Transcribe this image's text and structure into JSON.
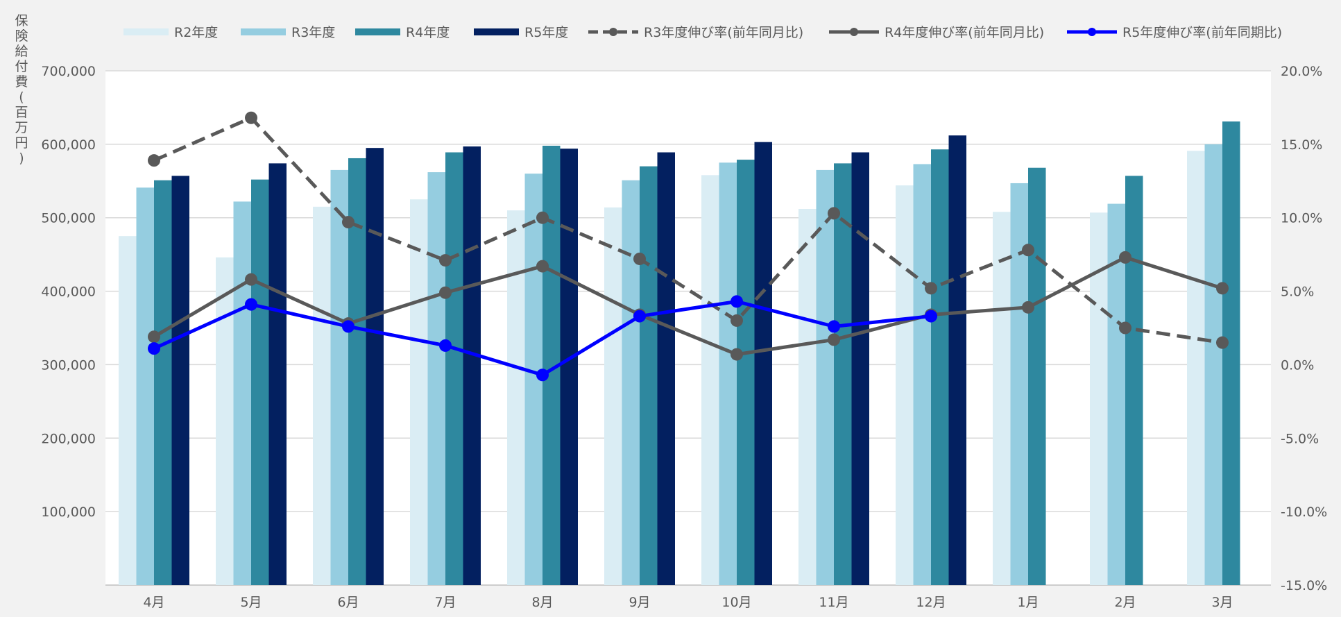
{
  "chart_data": {
    "type": "bar",
    "categories": [
      "4月",
      "5月",
      "6月",
      "7月",
      "8月",
      "9月",
      "10月",
      "11月",
      "12月",
      "1月",
      "2月",
      "3月"
    ],
    "series": [
      {
        "name": "R2年度",
        "kind": "bar",
        "color": "#daedf4",
        "values": [
          475000,
          446000,
          515000,
          525000,
          510000,
          514000,
          558000,
          512000,
          544000,
          508000,
          507000,
          591000
        ]
      },
      {
        "name": "R3年度",
        "kind": "bar",
        "color": "#95cde0",
        "values": [
          541000,
          522000,
          565000,
          562000,
          560000,
          551000,
          575000,
          565000,
          573000,
          547000,
          519000,
          600000
        ]
      },
      {
        "name": "R4年度",
        "kind": "bar",
        "color": "#2e889f",
        "values": [
          551000,
          552000,
          581000,
          589000,
          598000,
          570000,
          579000,
          574000,
          593000,
          568000,
          557000,
          631000
        ]
      },
      {
        "name": "R5年度",
        "kind": "bar",
        "color": "#032060",
        "values": [
          557000,
          574000,
          595000,
          597000,
          594000,
          589000,
          603000,
          589000,
          612000,
          null,
          null,
          null
        ]
      },
      {
        "name": "R3年度伸び率(前年同月比)",
        "kind": "line",
        "dash": true,
        "color": "#595959",
        "axis": "right",
        "values": [
          13.9,
          16.8,
          9.7,
          7.1,
          10.0,
          7.2,
          3.0,
          10.3,
          5.2,
          7.8,
          2.5,
          1.5
        ]
      },
      {
        "name": "R4年度伸び率(前年同月比)",
        "kind": "line",
        "dash": false,
        "color": "#595959",
        "axis": "right",
        "values": [
          1.9,
          5.8,
          2.8,
          4.9,
          6.7,
          3.4,
          0.7,
          1.7,
          3.4,
          3.9,
          7.3,
          5.2
        ]
      },
      {
        "name": "R5年度伸び率(前年同期比)",
        "kind": "line",
        "dash": false,
        "color": "#0000ff",
        "axis": "right",
        "values": [
          1.1,
          4.1,
          2.6,
          1.3,
          -0.7,
          3.3,
          4.3,
          2.6,
          3.3,
          null,
          null,
          null
        ]
      }
    ],
    "ylabel": "保険給付費(百万円)",
    "ylim": [
      0,
      700000
    ],
    "y_ticks": [
      "",
      "100,000",
      "200,000",
      "300,000",
      "400,000",
      "500,000",
      "600,000",
      "700,000"
    ],
    "y2lim": [
      -15,
      20
    ],
    "y2_ticks": [
      "-15.0%",
      "-10.0%",
      "-5.0%",
      "0.0%",
      "5.0%",
      "10.0%",
      "15.0%",
      "20.0%"
    ],
    "grid": true,
    "legend": "top"
  }
}
